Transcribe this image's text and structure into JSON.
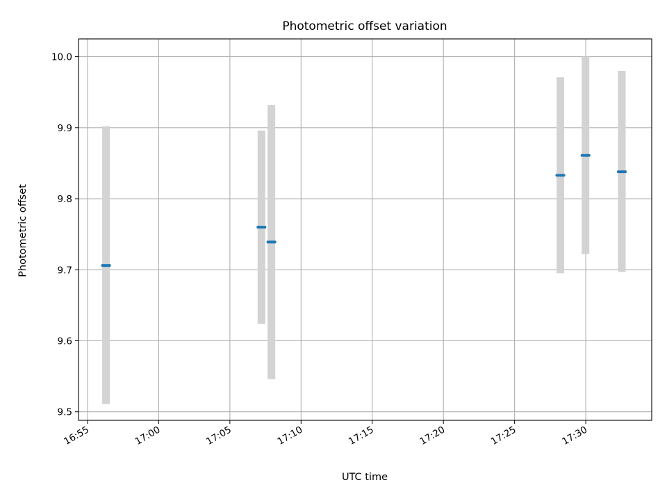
{
  "chart_data": {
    "type": "scatter",
    "title": "Photometric offset variation",
    "xlabel": "UTC time",
    "ylabel": "Photometric offset",
    "ylim": [
      9.488,
      10.025
    ],
    "xlim": [
      "16:54:22",
      "17:34:38"
    ],
    "y_ticks": [
      9.5,
      9.6,
      9.7,
      9.8,
      9.9,
      10.0
    ],
    "y_tick_labels": [
      "9.5",
      "9.6",
      "9.7",
      "9.8",
      "9.9",
      "10.0"
    ],
    "x_ticks": [
      "16:55",
      "17:00",
      "17:05",
      "17:10",
      "17:15",
      "17:20",
      "17:25",
      "17:30"
    ],
    "x_tick_labels": [
      "16:55",
      "17:00",
      "17:05",
      "17:10",
      "17:15",
      "17:20",
      "17:25",
      "17:30"
    ],
    "grid": true,
    "colors": {
      "points": "#1f77b4",
      "error_bars": "#d3d3d3"
    },
    "series": [
      {
        "points": [
          {
            "time": "16:56:18",
            "value": 9.706,
            "low": 9.511,
            "high": 9.902
          },
          {
            "time": "17:07:13",
            "value": 9.76,
            "low": 9.624,
            "high": 9.896
          },
          {
            "time": "17:07:55",
            "value": 9.739,
            "low": 9.546,
            "high": 9.932
          },
          {
            "time": "17:28:13",
            "value": 9.833,
            "low": 9.695,
            "high": 9.971
          },
          {
            "time": "17:29:59",
            "value": 9.861,
            "low": 9.722,
            "high": 10.0
          },
          {
            "time": "17:32:32",
            "value": 9.838,
            "low": 9.697,
            "high": 9.98
          }
        ]
      }
    ]
  }
}
